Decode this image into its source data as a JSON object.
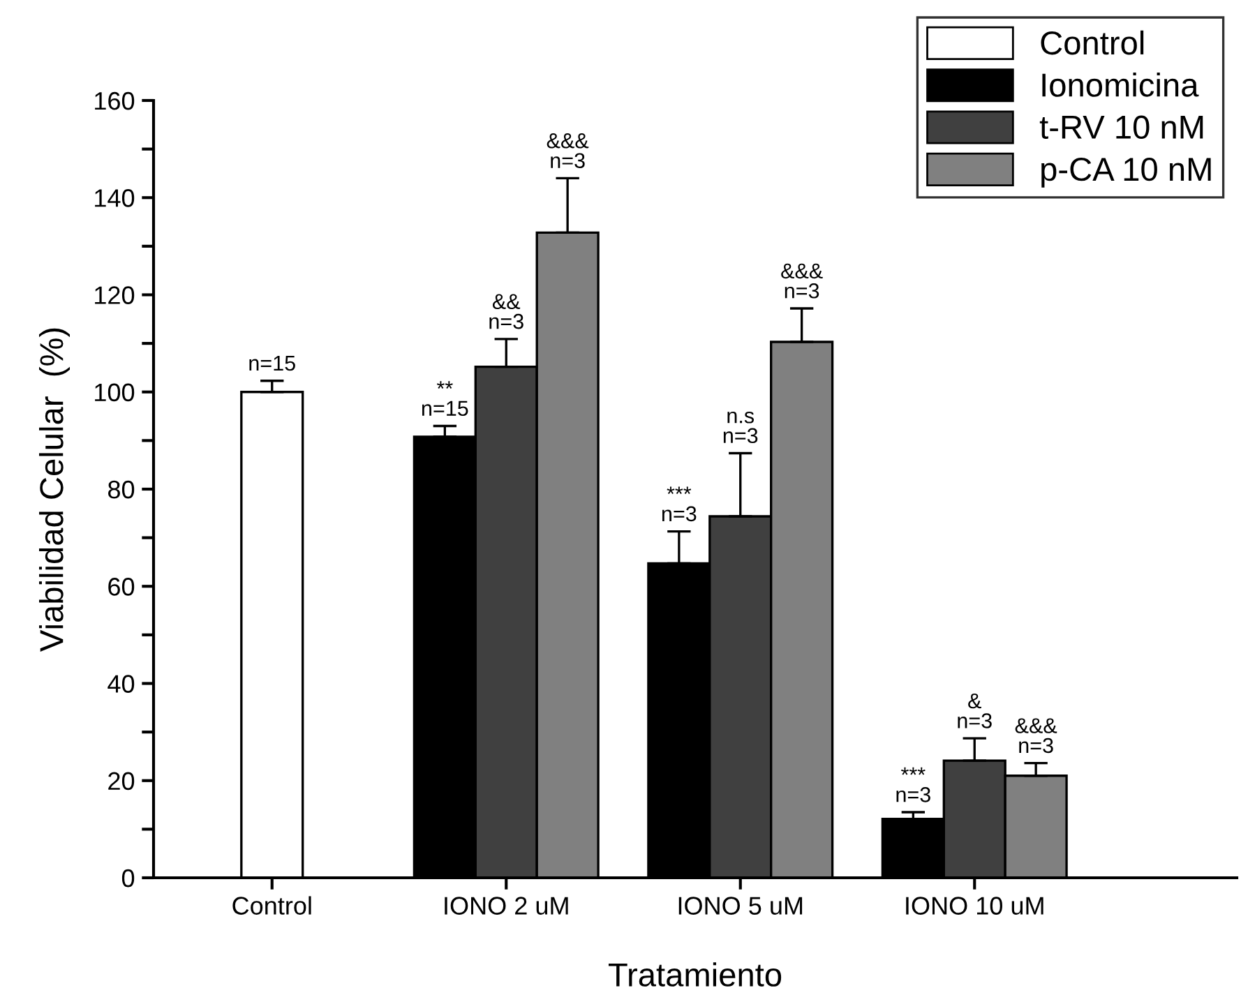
{
  "chart_data": {
    "type": "bar",
    "xlabel": "Tratamiento",
    "ylabel": "Viabilidad Celular  (%)",
    "categories": [
      "Control",
      "IONO 2 uM",
      "IONO 5 uM",
      "IONO 10 uM"
    ],
    "series": [
      {
        "name": "Control",
        "color": "#ffffff",
        "values": [
          100,
          null,
          null,
          null
        ],
        "errors": [
          [
            100,
            102.3
          ],
          null,
          null,
          null
        ]
      },
      {
        "name": "Ionomicina",
        "color": "#000000",
        "values": [
          null,
          90.8,
          64.7,
          12.1
        ],
        "errors": [
          null,
          [
            90.8,
            93
          ],
          [
            64.7,
            71.3
          ],
          [
            12.1,
            13.5
          ]
        ]
      },
      {
        "name": "t-RV 10 nM",
        "color": "#404040",
        "values": [
          null,
          105.2,
          74.4,
          24.1
        ],
        "errors": [
          null,
          [
            105.2,
            110.9
          ],
          [
            74.4,
            87.4
          ],
          [
            24.1,
            28.7
          ]
        ]
      },
      {
        "name": "p-CA 10 nM",
        "color": "#808080",
        "values": [
          null,
          132.8,
          110.3,
          21
        ],
        "errors": [
          null,
          [
            132.8,
            144
          ],
          [
            110.3,
            117.2
          ],
          [
            21,
            23.6
          ]
        ]
      }
    ],
    "annotations": [
      "n=15",
      "**\nn=15",
      "&&\nn=3",
      "&&&\nn=3",
      "***\nn=3",
      "n.s\nn=3",
      "&&&\nn=3",
      "***\nn=3",
      "&\nn=3",
      "&&&\nn=3"
    ],
    "ylim": [
      0,
      160
    ],
    "yticks": [
      0,
      {
        "value": 10,
        "label": null
      },
      20,
      {
        "value": 30,
        "label": null
      },
      40,
      {
        "value": 50,
        "label": null
      },
      60,
      {
        "value": 70,
        "label": null
      },
      80,
      {
        "value": 90,
        "label": null
      },
      100,
      {
        "value": 110,
        "label": null
      },
      120,
      {
        "value": 130,
        "label": null
      },
      140,
      {
        "value": 150,
        "label": null
      },
      160
    ],
    "legend": "top right",
    "grid": false
  }
}
